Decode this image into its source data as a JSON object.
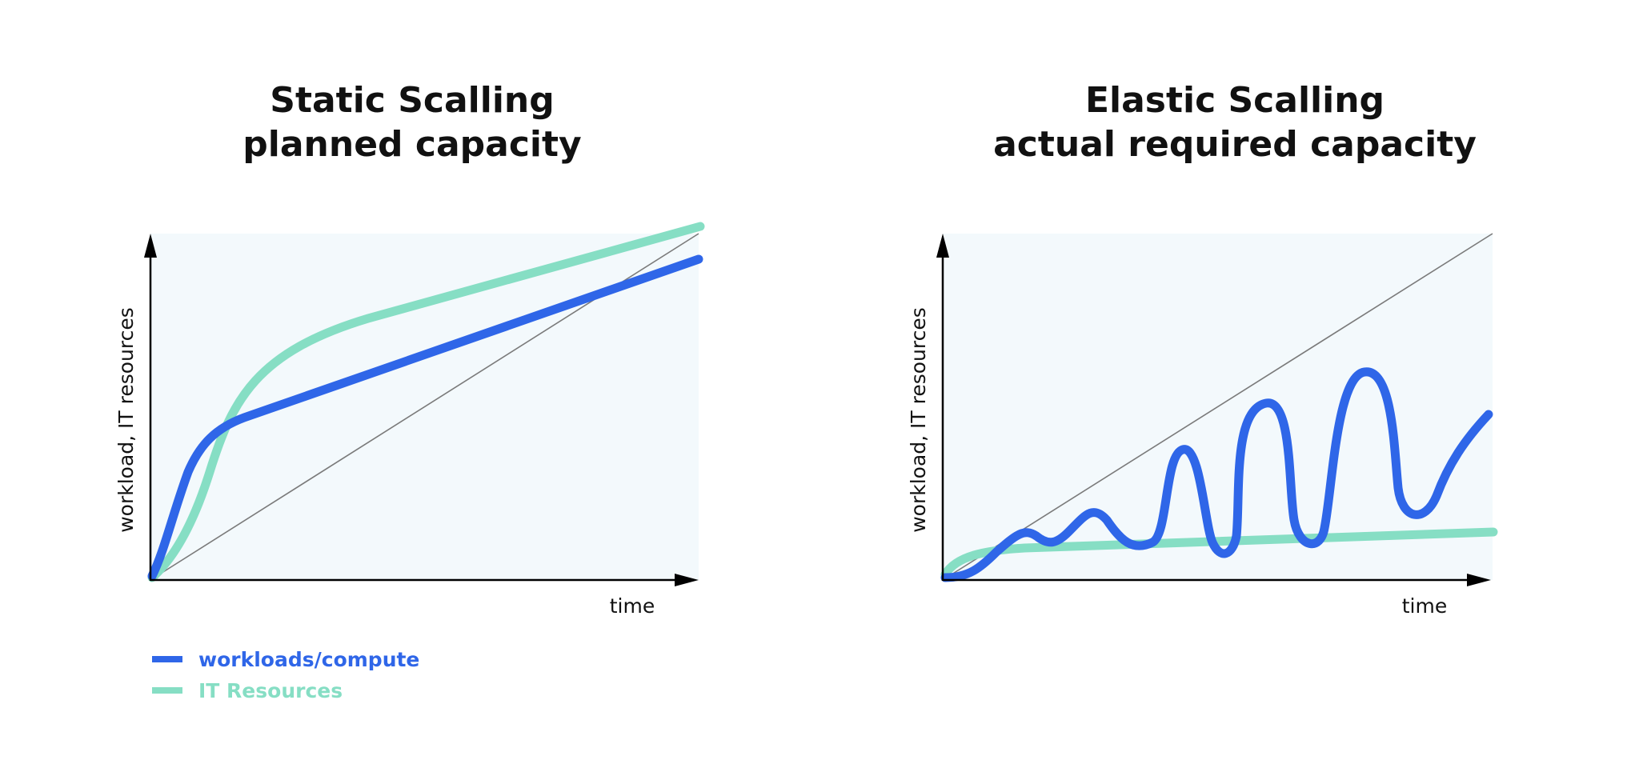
{
  "colors": {
    "workload": "#2F66E8",
    "resources": "#86DEC4",
    "plot_bg": "#F3F9FC",
    "axis": "#000000",
    "diagonal": "#7A7A7A"
  },
  "left_panel": {
    "title_line1": "Static Scalling",
    "title_line2": "planned capacity",
    "ylabel": "workload, IT resources",
    "xlabel": "time"
  },
  "right_panel": {
    "title_line1": "Elastic Scalling",
    "title_line2": "actual required capacity",
    "ylabel": "workload, IT resources",
    "xlabel": "time"
  },
  "legend": {
    "workload_label": "workloads/compute",
    "resources_label": "IT Resources"
  }
}
